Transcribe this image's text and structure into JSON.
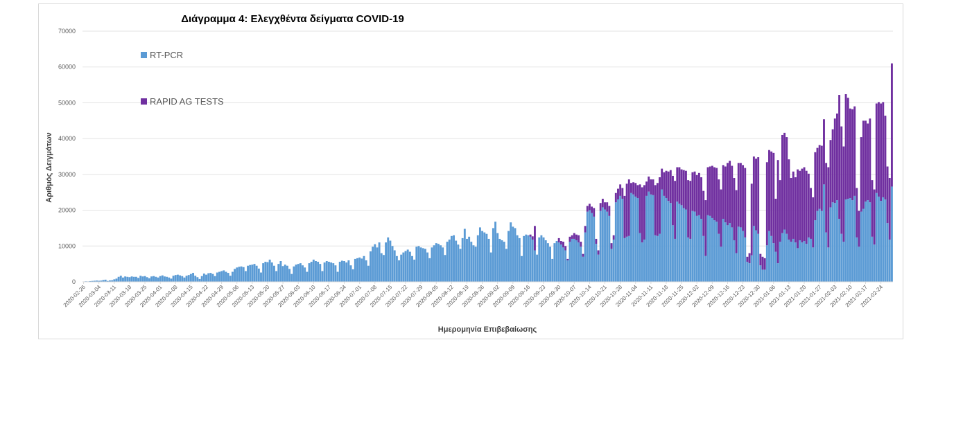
{
  "chart_data": {
    "type": "bar",
    "stacked": true,
    "title": "Διάγραμμα 4: Ελεγχθέντα δείγματα COVID-19",
    "xlabel": "Ημερομηνία Επιβεβαίωσης",
    "ylabel": "Αριθμός Δειγμάτων",
    "ylim": [
      0,
      70000
    ],
    "y_ticks": [
      "0",
      "10000",
      "20000",
      "30000",
      "40000",
      "50000",
      "60000",
      "70000"
    ],
    "x_tick_labels": [
      "2020-02-26",
      "2020-03-04",
      "2020-03-11",
      "2020-03-18",
      "2020-03-25",
      "2020-04-01",
      "2020-04-08",
      "2020-04-15",
      "2020-04-22",
      "2020-04-29",
      "2020-05-06",
      "2020-05-13",
      "2020-05-20",
      "2020-05-27",
      "2020-06-03",
      "2020-06-10",
      "2020-06-17",
      "2020-06-24",
      "2020-07-01",
      "2020-07-08",
      "2020-07-15",
      "2020-07-22",
      "2020-07-29",
      "2020-08-05",
      "2020-08-12",
      "2020-08-19",
      "2020-08-26",
      "2020-09-02",
      "2020-09-09",
      "2020-09-16",
      "2020-09-23",
      "2020-09-30",
      "2020-10-07",
      "2020-10-14",
      "2020-10-21",
      "2020-10-28",
      "2020-11-04",
      "2020-11-11",
      "2020-11-18",
      "2020-11-25",
      "2020-12-02",
      "2020-12-09",
      "2020-12-16",
      "2020-12-23",
      "2020-12-30",
      "2021-01-06",
      "2021-01-13",
      "2021-01-20",
      "2021-01-27",
      "2021-02-03",
      "2021-02-10",
      "2021-02-17",
      "2021-02-24"
    ],
    "grid": true,
    "legend_position": "top-left",
    "series": [
      {
        "name": "RT-PCR",
        "color": "#5b9bd5",
        "weekly": [
          {
            "week": "2020-02-26",
            "values": [
              100,
              150,
              120,
              200,
              250,
              300,
              350
            ]
          },
          {
            "week": "2020-03-04",
            "values": [
              300,
              350,
              500,
              600,
              250,
              400,
              450
            ]
          },
          {
            "week": "2020-03-11",
            "values": [
              700,
              900,
              1400,
              1700,
              1200,
              1500,
              1400
            ]
          },
          {
            "week": "2020-03-18",
            "values": [
              1300,
              1500,
              1400,
              1400,
              1100,
              1700,
              1500
            ]
          },
          {
            "week": "2020-03-25",
            "values": [
              1600,
              1300,
              1000,
              1500,
              1600,
              1400,
              1200
            ]
          },
          {
            "week": "2020-04-01",
            "values": [
              1600,
              1800,
              1500,
              1400,
              1200,
              900,
              1700
            ]
          },
          {
            "week": "2020-04-08",
            "values": [
              1900,
              2000,
              1800,
              1600,
              1200,
              1700,
              1900
            ]
          },
          {
            "week": "2020-04-15",
            "values": [
              2200,
              2500,
              1700,
              1300,
              800,
              1600,
              2300
            ]
          },
          {
            "week": "2020-04-22",
            "values": [
              2000,
              2400,
              2500,
              2200,
              1600,
              2600,
              2800
            ]
          },
          {
            "week": "2020-04-29",
            "values": [
              3000,
              3200,
              2800,
              2500,
              1700,
              2800,
              3600
            ]
          },
          {
            "week": "2020-05-06",
            "values": [
              4000,
              4200,
              4300,
              4100,
              3000,
              4500,
              4700
            ]
          },
          {
            "week": "2020-05-13",
            "values": [
              4800,
              5000,
              4500,
              3700,
              2600,
              5200,
              5600
            ]
          },
          {
            "week": "2020-05-20",
            "values": [
              5500,
              6200,
              5400,
              4500,
              3000,
              5000,
              5800
            ]
          },
          {
            "week": "2020-05-27",
            "values": [
              4400,
              4800,
              4500,
              3600,
              2200,
              4300,
              4800
            ]
          },
          {
            "week": "2020-06-03",
            "values": [
              5000,
              5200,
              4600,
              4000,
              2800,
              5200,
              5600
            ]
          },
          {
            "week": "2020-06-10",
            "values": [
              6200,
              5800,
              5600,
              5000,
              3000,
              5400,
              5800
            ]
          },
          {
            "week": "2020-06-17",
            "values": [
              5600,
              5400,
              5200,
              4600,
              2800,
              5600,
              5900
            ]
          },
          {
            "week": "2020-06-24",
            "values": [
              5800,
              5400,
              6000,
              4600,
              3500,
              6400,
              6600
            ]
          },
          {
            "week": "2020-07-01",
            "values": [
              6800,
              6500,
              7200,
              6000,
              4500,
              8500,
              9800
            ]
          },
          {
            "week": "2020-07-08",
            "values": [
              10500,
              9600,
              11000,
              8000,
              7500,
              11000,
              12400
            ]
          },
          {
            "week": "2020-07-15",
            "values": [
              11500,
              10000,
              8800,
              7200,
              6000,
              7600,
              8200
            ]
          },
          {
            "week": "2020-07-22",
            "values": [
              8600,
              9000,
              8400,
              7200,
              6200,
              9800,
              10000
            ]
          },
          {
            "week": "2020-07-29",
            "values": [
              9600,
              9400,
              9200,
              8200,
              6600,
              9600,
              10200
            ]
          },
          {
            "week": "2020-08-05",
            "values": [
              10800,
              10600,
              10200,
              9600,
              7500,
              11200,
              11800
            ]
          },
          {
            "week": "2020-08-12",
            "values": [
              12800,
              13000,
              11500,
              10400,
              9200,
              12200,
              14800
            ]
          },
          {
            "week": "2020-08-19",
            "values": [
              12000,
              12600,
              11200,
              10200,
              9800,
              13000,
              15200
            ]
          },
          {
            "week": "2020-08-26",
            "values": [
              14200,
              13800,
              13400,
              12000,
              8200,
              15000,
              16800
            ]
          },
          {
            "week": "2020-09-02",
            "values": [
              13600,
              12000,
              11600,
              11200,
              9200,
              14200,
              16600
            ]
          },
          {
            "week": "2020-09-09",
            "values": [
              15400,
              15000,
              13000,
              12200,
              7200,
              12800,
              13200
            ]
          },
          {
            "week": "2020-09-16",
            "values": [
              13000,
              12600,
              11800,
              8800,
              7600,
              12400,
              13000
            ]
          },
          {
            "week": "2020-09-23",
            "values": [
              12400,
              11600,
              10800,
              9800,
              6400,
              10800,
              11400
            ]
          },
          {
            "week": "2020-09-30",
            "values": [
              11000,
              10400,
              9600,
              8800,
              6000,
              11200,
              12000
            ]
          },
          {
            "week": "2020-10-07",
            "values": [
              12000,
              11600,
              11000,
              9800,
              7000,
              13800,
              19600
            ]
          },
          {
            "week": "2020-10-14",
            "values": [
              20000,
              19200,
              18200,
              10600,
              7600,
              19800,
              20800
            ]
          },
          {
            "week": "2020-10-21",
            "values": [
              20200,
              19600,
              18400,
              9200,
              11800,
              22200,
              23000
            ]
          },
          {
            "week": "2020-10-28",
            "values": [
              24000,
              23200,
              12200,
              12600,
              12800,
              24800,
              24400
            ]
          },
          {
            "week": "2020-11-04",
            "values": [
              23800,
              23400,
              13600,
              11000,
              11800,
              24000,
              25200
            ]
          },
          {
            "week": "2020-11-11",
            "values": [
              24400,
              24200,
              13000,
              12800,
              13400,
              25800,
              24000
            ]
          },
          {
            "week": "2020-11-18",
            "values": [
              23400,
              22600,
              22000,
              15800,
              12000,
              22400,
              21800
            ]
          },
          {
            "week": "2020-11-25",
            "values": [
              21400,
              20600,
              20200,
              12400,
              12000,
              19800,
              19600
            ]
          },
          {
            "week": "2020-12-02",
            "values": [
              18400,
              18600,
              17600,
              12800,
              7200,
              18600,
              18400
            ]
          },
          {
            "week": "2020-12-09",
            "values": [
              17800,
              17200,
              16800,
              13400,
              9800,
              17600,
              16600
            ]
          },
          {
            "week": "2020-12-16",
            "values": [
              15800,
              16400,
              15200,
              11600,
              8000,
              15400,
              15200
            ]
          },
          {
            "week": "2020-12-23",
            "values": [
              14200,
              12400,
              5600,
              5200,
              7400,
              15600,
              14400
            ]
          },
          {
            "week": "2020-12-30",
            "values": [
              13400,
              4600,
              3400,
              3400,
              10200,
              14200,
              12800
            ]
          },
          {
            "week": "2021-01-06",
            "values": [
              10800,
              8400,
              5200,
              11200,
              13600,
              14600,
              13400
            ]
          },
          {
            "week": "2021-01-13",
            "values": [
              11800,
              11200,
              12000,
              11000,
              9400,
              11600,
              11000
            ]
          },
          {
            "week": "2021-01-20",
            "values": [
              11400,
              10600,
              12400,
              12000,
              9600,
              17200,
              19800
            ]
          },
          {
            "week": "2021-01-27",
            "values": [
              20400,
              19800,
              27200,
              13800,
              9600,
              20800,
              22200
            ]
          },
          {
            "week": "2021-02-03",
            "values": [
              22000,
              22800,
              17600,
              13400,
              11200,
              23000,
              23200
            ]
          },
          {
            "week": "2021-02-10",
            "values": [
              23400,
              22800,
              24000,
              12400,
              9800,
              19600,
              20400
            ]
          },
          {
            "week": "2021-02-17",
            "values": [
              22400,
              22800,
              22200,
              12600,
              10400,
              24800,
              23800
            ]
          },
          {
            "week": "2021-02-24",
            "values": [
              22600,
              23600,
              23000,
              16400,
              11800,
              26600
            ]
          }
        ]
      },
      {
        "name": "RAPID AG TESTS",
        "color": "#7030a0",
        "weekly": [
          {
            "week": "2020-09-16",
            "values": [
              0,
              600,
              900,
              6800,
              0,
              0,
              0
            ]
          },
          {
            "week": "2020-09-30",
            "values": [
              1200,
              1000,
              1600,
              1200,
              400,
              1400,
              1000
            ]
          },
          {
            "week": "2020-10-07",
            "values": [
              1600,
              1600,
              2000,
              1400,
              800,
              1800,
              1600
            ]
          },
          {
            "week": "2020-10-14",
            "values": [
              1800,
              1800,
              2400,
              1400,
              1200,
              2200,
              2400
            ]
          },
          {
            "week": "2020-10-21",
            "values": [
              2000,
              2600,
              2800,
              1600,
              1200,
              2600,
              3000
            ]
          },
          {
            "week": "2020-10-28",
            "values": [
              3200,
              3000,
              11800,
              14800,
              15800,
              2800,
              3400
            ]
          },
          {
            "week": "2020-11-04",
            "values": [
              3800,
              3600,
              13600,
              15400,
              15200,
              4000,
              4200
            ]
          },
          {
            "week": "2020-11-11",
            "values": [
              4200,
              4400,
              14000,
              14800,
              15800,
              5800,
              6600
            ]
          },
          {
            "week": "2020-11-18",
            "values": [
              7600,
              8200,
              9200,
              13800,
              16200,
              9600,
              10200
            ]
          },
          {
            "week": "2020-11-25",
            "values": [
              10000,
              10600,
              10800,
              16000,
              16200,
              10800,
              11200
            ]
          },
          {
            "week": "2020-12-02",
            "values": [
              11400,
              11800,
              11600,
              12600,
              15600,
              13400,
              13800
            ]
          },
          {
            "week": "2020-12-09",
            "values": [
              14600,
              14800,
              15000,
              15200,
              16000,
              15000,
              15600
            ]
          },
          {
            "week": "2020-12-16",
            "values": [
              17400,
              17400,
              17200,
              17400,
              17600,
              17800,
              18000
            ]
          },
          {
            "week": "2020-12-23",
            "values": [
              18400,
              19400,
              1400,
              2800,
              20000,
              19400,
              20000
            ]
          },
          {
            "week": "2020-12-30",
            "values": [
              21400,
              3200,
              3600,
              3200,
              23200,
              22600,
              23600
            ]
          },
          {
            "week": "2021-01-06",
            "values": [
              25200,
              14800,
              28800,
              17200,
              27400,
              27000,
              27000
            ]
          },
          {
            "week": "2021-01-13",
            "values": [
              22400,
              17800,
              18800,
              18200,
              22000,
              19400,
              20600
            ]
          },
          {
            "week": "2021-01-20",
            "values": [
              20600,
              20400,
              17800,
              14200,
              14000,
              19000,
              17600
            ]
          },
          {
            "week": "2021-01-27",
            "values": [
              17800,
              18200,
              18200,
              19400,
              22400,
              18800,
              20400
            ]
          },
          {
            "week": "2021-02-03",
            "values": [
              23600,
              24200,
              34600,
              30000,
              26600,
              29400,
              28200
            ]
          },
          {
            "week": "2021-02-10",
            "values": [
              25000,
              25400,
              25000,
              13800,
              10000,
              20800,
              24600
            ]
          },
          {
            "week": "2021-02-17",
            "values": [
              22600,
              21400,
              23400,
              15800,
              15400,
              25000,
              26400
            ]
          },
          {
            "week": "2021-02-24",
            "values": [
              27200,
              26600,
              23400,
              15800,
              17200,
              34400
            ]
          }
        ]
      }
    ]
  }
}
